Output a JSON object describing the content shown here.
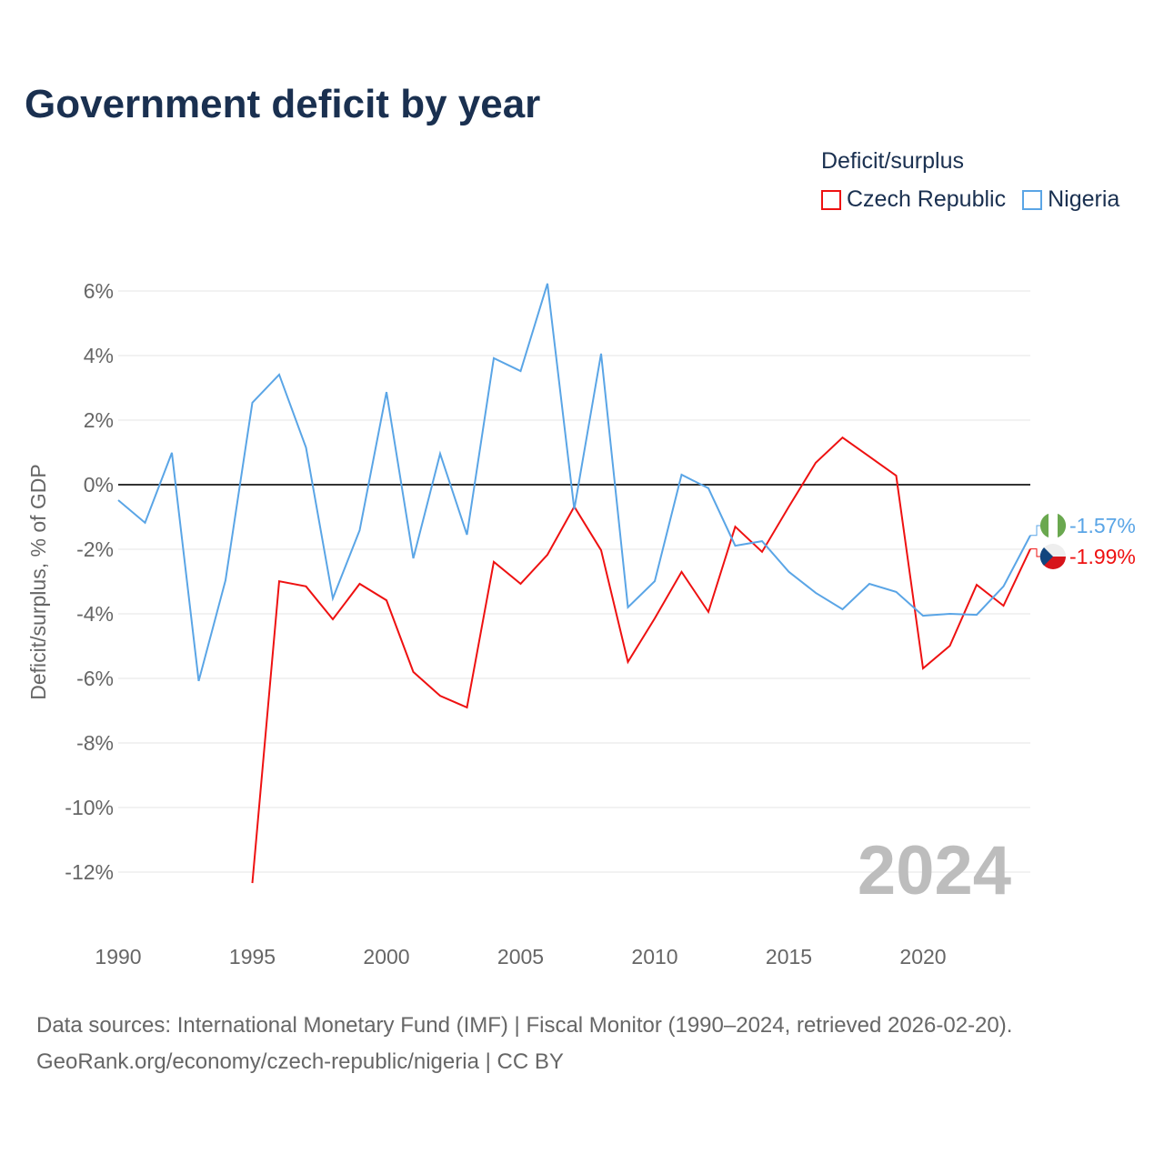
{
  "title": "Government deficit by year",
  "legend": {
    "title": "Deficit/surplus",
    "items": [
      "Czech Republic",
      "Nigeria"
    ]
  },
  "source": {
    "line1": "Data sources: International Monetary Fund (IMF) | Fiscal Monitor (1990–2024, retrieved 2026-02-20).",
    "line2": "GeoRank.org/economy/czech-republic/nigeria | CC BY"
  },
  "year_watermark": "2024",
  "chart_data": {
    "type": "line",
    "title": "Government deficit by year",
    "xlabel": "",
    "ylabel": "Deficit/surplus, % of GDP",
    "xlim": [
      1990,
      2024
    ],
    "ylim": [
      -13,
      6.5
    ],
    "xticks": [
      1990,
      1995,
      2000,
      2005,
      2010,
      2015,
      2020
    ],
    "yticks": [
      6,
      4,
      2,
      0,
      -2,
      -4,
      -6,
      -8,
      -10,
      -12
    ],
    "ytick_labels": [
      "6%",
      "4%",
      "2%",
      "0%",
      "-2%",
      "-4%",
      "-6%",
      "-8%",
      "-10%",
      "-12%"
    ],
    "grid": true,
    "legend_position": "top-right",
    "series": [
      {
        "name": "Czech Republic",
        "color": "#ee1111",
        "end_label": "-1.99%",
        "x": [
          1995,
          1996,
          1997,
          1998,
          1999,
          2000,
          2001,
          2002,
          2003,
          2004,
          2005,
          2006,
          2007,
          2008,
          2009,
          2010,
          2011,
          2012,
          2013,
          2014,
          2015,
          2016,
          2017,
          2018,
          2019,
          2020,
          2021,
          2022,
          2023,
          2024
        ],
        "values": [
          -12.34,
          -2.99,
          -3.15,
          -4.17,
          -3.07,
          -3.58,
          -5.8,
          -6.54,
          -6.9,
          -2.39,
          -3.07,
          -2.17,
          -0.68,
          -2.03,
          -5.49,
          -4.14,
          -2.7,
          -3.94,
          -1.3,
          -2.08,
          -0.68,
          0.68,
          1.46,
          0.87,
          0.28,
          -5.69,
          -4.99,
          -3.1,
          -3.75,
          -1.99
        ]
      },
      {
        "name": "Nigeria",
        "color": "#5aa5e6",
        "end_label": "-1.57%",
        "x": [
          1990,
          1991,
          1992,
          1993,
          1994,
          1995,
          1996,
          1997,
          1998,
          1999,
          2000,
          2001,
          2002,
          2003,
          2004,
          2005,
          2006,
          2007,
          2008,
          2009,
          2010,
          2011,
          2012,
          2013,
          2014,
          2015,
          2016,
          2017,
          2018,
          2019,
          2020,
          2021,
          2022,
          2023,
          2024
        ],
        "values": [
          -0.48,
          -1.18,
          0.99,
          -6.08,
          -2.96,
          2.54,
          3.41,
          1.15,
          -3.52,
          -1.41,
          2.87,
          -2.28,
          0.96,
          -1.55,
          3.92,
          3.52,
          6.23,
          -0.76,
          4.06,
          -3.8,
          -2.99,
          0.31,
          -0.11,
          -1.89,
          -1.75,
          -2.7,
          -3.35,
          -3.86,
          -3.07,
          -3.32,
          -4.06,
          -4.0,
          -4.03,
          -3.15,
          -1.57
        ]
      }
    ]
  }
}
